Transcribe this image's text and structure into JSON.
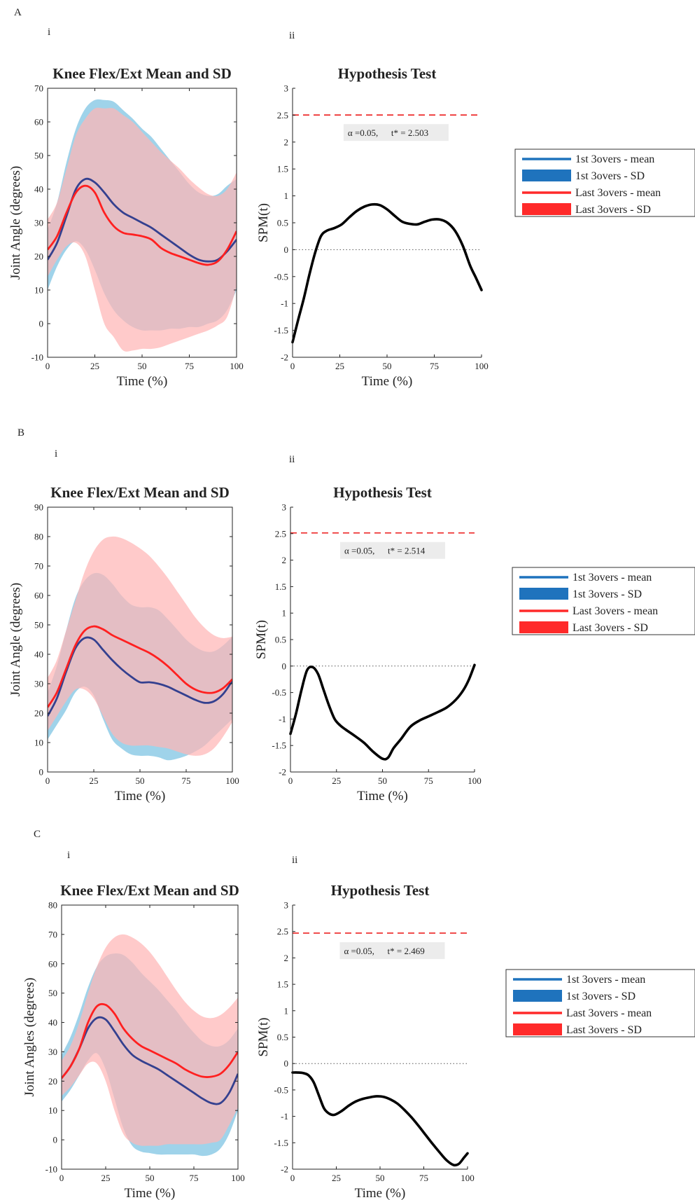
{
  "colors": {
    "first_mean": "#34408f",
    "first_sd": "#9fd3ea",
    "last_mean": "#ff2020",
    "last_sd": "#ffb6b6",
    "overlap": "#cd9fb3",
    "spm": "#000000",
    "threshold": "#ee3333",
    "legend_first": "#1f73bd",
    "legend_last": "#ff2a2a",
    "annotation_bg": "#ececec"
  },
  "panels": [
    {
      "letter": "A",
      "left": {
        "sublabel": "i",
        "title": "Knee Flex/Ext Mean and SD",
        "ylabel": "Joint Angle (degrees)",
        "xlabel": "Time (%)"
      },
      "right": {
        "sublabel": "ii",
        "title": "Hypothesis Test",
        "ylabel": "SPM(t)",
        "xlabel": "Time (%)",
        "annotation": {
          "alpha": "α  =0.05,",
          "tstar": "t* = 2.503"
        }
      },
      "legend": [
        {
          "label": "1st 3overs - mean"
        },
        {
          "label": "1st 3overs - SD"
        },
        {
          "label": "Last 3overs - mean"
        },
        {
          "label": "Last 3overs - SD"
        }
      ]
    },
    {
      "letter": "B",
      "left": {
        "sublabel": "i",
        "title": "Knee Flex/Ext Mean and SD",
        "ylabel": "Joint Angle (degrees)",
        "xlabel": "Time (%)"
      },
      "right": {
        "sublabel": "ii",
        "title": "Hypothesis Test",
        "ylabel": "SPM(t)",
        "xlabel": "Time (%)",
        "annotation": {
          "alpha": "α  =0.05,",
          "tstar": "t* = 2.514"
        }
      },
      "legend": [
        {
          "label": "1st 3overs - mean"
        },
        {
          "label": "1st 3overs - SD"
        },
        {
          "label": "Last 3overs - mean"
        },
        {
          "label": "Last 3overs - SD"
        }
      ]
    },
    {
      "letter": "C",
      "left": {
        "sublabel": "i",
        "title": "Knee Flex/Ext Mean and SD",
        "ylabel": "Joint Angles (degrees)",
        "xlabel": "Time (%)"
      },
      "right": {
        "sublabel": "ii",
        "title": "Hypothesis Test",
        "ylabel": "SPM(t)",
        "xlabel": "Time (%)",
        "annotation": {
          "alpha": "α  =0.05,",
          "tstar": "t* = 2.469"
        }
      },
      "legend": [
        {
          "label": "1st 3overs - mean"
        },
        {
          "label": "1st 3overs - SD"
        },
        {
          "label": "Last 3overs - mean"
        },
        {
          "label": "Last 3overs - SD"
        }
      ]
    }
  ],
  "chart_data": [
    {
      "id": "A-i",
      "type": "area",
      "title": "Knee Flex/Ext Mean and SD",
      "xlabel": "Time (%)",
      "ylabel": "Joint Angle (degrees)",
      "xlim": [
        0,
        100
      ],
      "ylim": [
        -10,
        70
      ],
      "xticks": [
        0,
        25,
        50,
        75,
        100
      ],
      "yticks": [
        -10,
        0,
        10,
        20,
        30,
        40,
        50,
        60,
        70
      ],
      "x": [
        0,
        5,
        10,
        15,
        20,
        25,
        30,
        35,
        40,
        45,
        50,
        55,
        60,
        65,
        70,
        75,
        80,
        85,
        90,
        95,
        100
      ],
      "series": [
        {
          "name": "1st 3overs - mean",
          "kind": "line",
          "color_key": "first_mean",
          "values": [
            19,
            24,
            32,
            40,
            43,
            42,
            39,
            35.5,
            33,
            31.5,
            30,
            28.5,
            26.5,
            24.5,
            22.5,
            20.5,
            19,
            18.5,
            19,
            21.5,
            25
          ]
        },
        {
          "name": "1st 3overs - SD",
          "kind": "band",
          "color_key": "first_sd",
          "lower": [
            10,
            17,
            22,
            24.5,
            22,
            16,
            9,
            4,
            1,
            -1,
            -2,
            -2,
            -2,
            -1.5,
            -1.5,
            -1,
            -1,
            0,
            1,
            4,
            10
          ],
          "upper": [
            28,
            36,
            48,
            58,
            64,
            66.5,
            66.5,
            66,
            63.5,
            61,
            58,
            55.5,
            52,
            48.5,
            45,
            41.5,
            39,
            38,
            38.5,
            41,
            43
          ]
        },
        {
          "name": "Last 3overs - mean",
          "kind": "line",
          "color_key": "last_mean",
          "values": [
            22,
            26,
            33,
            39,
            41,
            39,
            33,
            29,
            27,
            26.5,
            26,
            25,
            22.5,
            21,
            20,
            19,
            18,
            17.5,
            18.5,
            22,
            27.5
          ]
        },
        {
          "name": "Last 3overs - SD",
          "kind": "band",
          "color_key": "last_sd",
          "lower": [
            14,
            19,
            23,
            24,
            20,
            10,
            0,
            -4,
            -8,
            -8,
            -7.5,
            -7.5,
            -7,
            -6,
            -5,
            -4,
            -3,
            -2,
            -0.5,
            2,
            11
          ]
        },
        {
          "name": "Last 3overs - SD upper",
          "kind": "band_upper",
          "color_key": "last_sd",
          "upper": [
            31,
            36,
            46,
            56,
            61,
            64,
            64,
            64,
            62,
            60,
            57,
            54,
            51,
            48.5,
            46,
            43,
            40.5,
            38.5,
            38,
            40,
            45
          ]
        }
      ]
    },
    {
      "id": "A-ii",
      "type": "line",
      "title": "Hypothesis Test",
      "xlabel": "Time (%)",
      "ylabel": "SPM(t)",
      "xlim": [
        0,
        100
      ],
      "ylim": [
        -2,
        3
      ],
      "xticks": [
        0,
        25,
        50,
        75,
        100
      ],
      "yticks": [
        -2,
        -1.5,
        -1,
        -0.5,
        0,
        0.5,
        1,
        1.5,
        2,
        2.5,
        3
      ],
      "threshold": 2.503,
      "x": [
        0,
        3,
        6,
        9,
        12,
        15,
        18,
        22,
        26,
        30,
        34,
        38,
        42,
        46,
        50,
        54,
        58,
        62,
        66,
        70,
        74,
        78,
        82,
        86,
        90,
        94,
        97,
        100
      ],
      "values": [
        -1.72,
        -1.3,
        -0.9,
        -0.45,
        -0.05,
        0.25,
        0.35,
        0.4,
        0.47,
        0.6,
        0.72,
        0.8,
        0.84,
        0.83,
        0.75,
        0.63,
        0.52,
        0.48,
        0.47,
        0.52,
        0.56,
        0.56,
        0.5,
        0.35,
        0.08,
        -0.3,
        -0.52,
        -0.75
      ]
    },
    {
      "id": "B-i",
      "type": "area",
      "title": "Knee Flex/Ext Mean and SD",
      "xlabel": "Time (%)",
      "ylabel": "Joint Angle (degrees)",
      "xlim": [
        0,
        100
      ],
      "ylim": [
        0,
        90
      ],
      "xticks": [
        0,
        25,
        50,
        75,
        100
      ],
      "yticks": [
        0,
        10,
        20,
        30,
        40,
        50,
        60,
        70,
        80,
        90
      ],
      "x": [
        0,
        5,
        10,
        15,
        20,
        25,
        30,
        35,
        40,
        45,
        50,
        55,
        60,
        65,
        70,
        75,
        80,
        85,
        90,
        95,
        100
      ],
      "series": [
        {
          "name": "1st 3overs - mean",
          "kind": "line",
          "color_key": "first_mean",
          "values": [
            19,
            25,
            34,
            42,
            45.5,
            45,
            41.5,
            38,
            35,
            32.5,
            30.5,
            30.5,
            30,
            29,
            27.5,
            26,
            24.5,
            23.5,
            24,
            26.5,
            31
          ]
        },
        {
          "name": "1st 3overs - SD",
          "kind": "band",
          "color_key": "first_sd",
          "lower": [
            11,
            16,
            21,
            27,
            29,
            26,
            18,
            11,
            8,
            6,
            5.5,
            5.5,
            5,
            4,
            4.5,
            5.5,
            7,
            9,
            12,
            15,
            18
          ]
        },
        {
          "name": "1st 3overs - SD upper",
          "kind": "band_upper",
          "color_key": "first_sd",
          "upper": [
            27,
            36,
            48,
            59,
            65,
            67.5,
            67,
            64,
            60,
            57,
            56,
            56,
            55,
            52,
            48.5,
            45,
            42.5,
            41,
            41,
            43,
            46
          ]
        },
        {
          "name": "Last 3overs - mean",
          "kind": "line",
          "color_key": "last_mean",
          "values": [
            22,
            27,
            35,
            43,
            48,
            49.5,
            48.5,
            46.5,
            45,
            43.5,
            42,
            40.5,
            38.5,
            36,
            33,
            30,
            28,
            27,
            27,
            28.5,
            31.5
          ]
        },
        {
          "name": "Last 3overs - SD",
          "kind": "band",
          "color_key": "last_sd",
          "lower": [
            14,
            19,
            24,
            28,
            28,
            25,
            19,
            13,
            10,
            9,
            9,
            9,
            8.5,
            8,
            7,
            6,
            5.5,
            6,
            8,
            12,
            17
          ]
        },
        {
          "name": "Last 3overs - SD upper",
          "kind": "band_upper",
          "color_key": "last_sd",
          "upper": [
            32,
            38,
            48,
            58,
            68,
            75,
            79,
            80,
            79.5,
            78,
            76,
            73.5,
            70,
            66,
            61.5,
            57,
            52.5,
            49,
            46.5,
            45.5,
            46
          ]
        }
      ]
    },
    {
      "id": "B-ii",
      "type": "line",
      "title": "Hypothesis Test",
      "xlabel": "Time (%)",
      "ylabel": "SPM(t)",
      "xlim": [
        0,
        100
      ],
      "ylim": [
        -2,
        3
      ],
      "xticks": [
        0,
        25,
        50,
        75,
        100
      ],
      "yticks": [
        -2,
        -1.5,
        -1,
        -0.5,
        0,
        0.5,
        1,
        1.5,
        2,
        2.5,
        3
      ],
      "threshold": 2.514,
      "x": [
        0,
        3,
        6,
        9,
        12,
        15,
        18,
        21,
        24,
        27,
        30,
        35,
        40,
        45,
        50,
        53,
        56,
        60,
        65,
        70,
        75,
        80,
        85,
        90,
        94,
        97,
        100
      ],
      "values": [
        -1.28,
        -0.9,
        -0.45,
        -0.08,
        -0.02,
        -0.15,
        -0.45,
        -0.75,
        -1.0,
        -1.12,
        -1.2,
        -1.32,
        -1.45,
        -1.62,
        -1.75,
        -1.73,
        -1.55,
        -1.38,
        -1.15,
        -1.03,
        -0.95,
        -0.87,
        -0.78,
        -0.63,
        -0.45,
        -0.25,
        0.02
      ]
    },
    {
      "id": "C-i",
      "type": "area",
      "title": "Knee Flex/Ext Mean and SD",
      "xlabel": "Time (%)",
      "ylabel": "Joint Angles (degrees)",
      "xlim": [
        0,
        100
      ],
      "ylim": [
        -10,
        80
      ],
      "xticks": [
        0,
        25,
        50,
        75,
        100
      ],
      "yticks": [
        -10,
        0,
        10,
        20,
        30,
        40,
        50,
        60,
        70,
        80
      ],
      "x": [
        0,
        5,
        10,
        15,
        20,
        25,
        30,
        35,
        40,
        45,
        50,
        55,
        60,
        65,
        70,
        75,
        80,
        85,
        90,
        95,
        100
      ],
      "series": [
        {
          "name": "1st 3overs - mean",
          "kind": "line",
          "color_key": "first_mean",
          "values": [
            21,
            25,
            31,
            38,
            41.5,
            41,
            37,
            32.5,
            29,
            27,
            25.5,
            24,
            22,
            20,
            18,
            16,
            14,
            12.5,
            12.5,
            16,
            22.5
          ]
        },
        {
          "name": "1st 3overs - SD",
          "kind": "band",
          "color_key": "first_sd",
          "lower": [
            13,
            17,
            22,
            27,
            29.5,
            24,
            14,
            4,
            -2,
            -4,
            -4.5,
            -5,
            -5,
            -5,
            -5,
            -5,
            -5.5,
            -5,
            -3,
            2,
            10
          ]
        },
        {
          "name": "1st 3overs - SD upper",
          "kind": "band_upper",
          "color_key": "first_sd",
          "upper": [
            29,
            35,
            43,
            52,
            59,
            62.5,
            63.5,
            63,
            60.5,
            57,
            54,
            51,
            47.5,
            44,
            40,
            36.5,
            33.5,
            32,
            32,
            34,
            38
          ]
        },
        {
          "name": "Last 3overs - mean",
          "kind": "line",
          "color_key": "last_mean",
          "values": [
            21,
            25,
            31,
            40,
            45.5,
            46,
            43,
            38,
            34.5,
            32,
            30.5,
            29,
            27.5,
            26,
            24,
            22.5,
            21.5,
            21.5,
            22.5,
            25.5,
            30
          ]
        },
        {
          "name": "Last 3overs - SD",
          "kind": "band",
          "color_key": "last_sd",
          "lower": [
            15,
            18,
            22,
            26,
            26,
            20,
            10,
            2,
            -1,
            -2,
            -2,
            -2,
            -1.5,
            -1.5,
            -1.5,
            -1.5,
            -1.5,
            -1,
            0,
            5,
            11
          ]
        },
        {
          "name": "Last 3overs - SD upper",
          "kind": "band_upper",
          "color_key": "last_sd",
          "upper": [
            27,
            32,
            40,
            50,
            59,
            65.5,
            69,
            70,
            69,
            67,
            64,
            60,
            55.5,
            51,
            47,
            44,
            42,
            41.5,
            42.5,
            45,
            48.5
          ]
        }
      ]
    },
    {
      "id": "C-ii",
      "type": "line",
      "title": "Hypothesis Test",
      "xlabel": "Time (%)",
      "ylabel": "SPM(t)",
      "xlim": [
        0,
        100
      ],
      "ylim": [
        -2,
        3
      ],
      "xticks": [
        0,
        25,
        50,
        75,
        100
      ],
      "yticks": [
        -2,
        -1.5,
        -1,
        -0.5,
        0,
        0.5,
        1,
        1.5,
        2,
        2.5,
        3
      ],
      "threshold": 2.469,
      "x": [
        0,
        3,
        6,
        9,
        12,
        15,
        18,
        21,
        24,
        28,
        32,
        36,
        40,
        44,
        48,
        52,
        56,
        60,
        64,
        68,
        72,
        76,
        80,
        84,
        88,
        92,
        95,
        98,
        100
      ],
      "values": [
        -0.17,
        -0.17,
        -0.18,
        -0.22,
        -0.35,
        -0.6,
        -0.85,
        -0.95,
        -0.97,
        -0.9,
        -0.8,
        -0.72,
        -0.67,
        -0.64,
        -0.62,
        -0.63,
        -0.68,
        -0.76,
        -0.88,
        -1.02,
        -1.18,
        -1.35,
        -1.52,
        -1.68,
        -1.83,
        -1.92,
        -1.9,
        -1.78,
        -1.7
      ]
    }
  ]
}
